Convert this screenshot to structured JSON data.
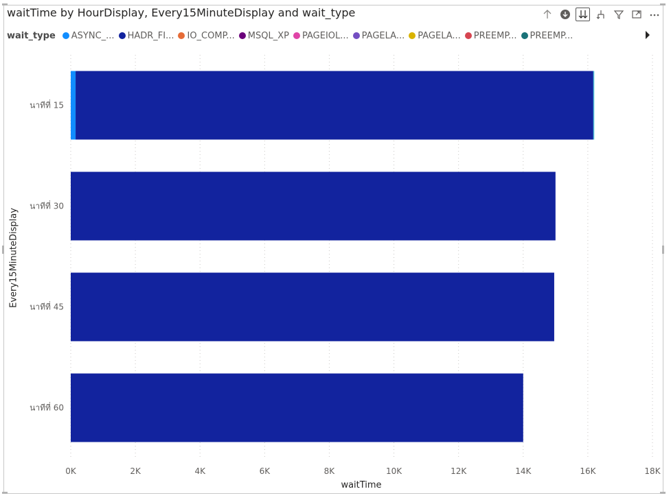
{
  "visual": {
    "title": "waitTime by HourDisplay, Every15MinuteDisplay and wait_type",
    "toolbar": [
      {
        "name": "drill-up-icon",
        "active": false
      },
      {
        "name": "drill-down-on-icon",
        "active": false
      },
      {
        "name": "expand-next-level-icon",
        "active": true
      },
      {
        "name": "expand-hierarchy-icon",
        "active": false
      },
      {
        "name": "filter-icon",
        "active": false
      },
      {
        "name": "focus-mode-icon",
        "active": false
      },
      {
        "name": "more-options-icon",
        "active": false
      }
    ]
  },
  "legend": {
    "title": "wait_type",
    "items": [
      {
        "label": "ASYNC_...",
        "color": "#118DFF"
      },
      {
        "label": "HADR_FI...",
        "color": "#12239E"
      },
      {
        "label": "IO_COMP...",
        "color": "#E66C37"
      },
      {
        "label": "MSQL_XP",
        "color": "#6B007B"
      },
      {
        "label": "PAGEIOL...",
        "color": "#E044A7"
      },
      {
        "label": "PAGELA...",
        "color": "#744EC2"
      },
      {
        "label": "PAGELA...",
        "color": "#D9B300"
      },
      {
        "label": "PREEMP...",
        "color": "#D64550"
      },
      {
        "label": "PREEMP...",
        "color": "#197278"
      }
    ]
  },
  "chart_data": {
    "type": "bar",
    "orientation": "horizontal",
    "stacked": true,
    "xlabel": "waitTime",
    "ylabel": "Every15MinuteDisplay",
    "xlim": [
      0,
      18000
    ],
    "x_ticks": [
      "0K",
      "2K",
      "4K",
      "6K",
      "8K",
      "10K",
      "12K",
      "14K",
      "16K",
      "18K"
    ],
    "categories": [
      "นาทีที่ 15",
      "นาทีที่ 30",
      "นาทีที่ 45",
      "นาทีที่ 60"
    ],
    "series": [
      {
        "name": "ASYNC_...",
        "color": "#118DFF",
        "values": [
          150,
          0,
          0,
          0
        ]
      },
      {
        "name": "HADR_FI...",
        "color": "#12239E",
        "values": [
          16020,
          15000,
          14960,
          14000
        ]
      },
      {
        "name": "PREEMP...",
        "color": "#4FC3D9",
        "values": [
          30,
          0,
          0,
          0
        ]
      }
    ],
    "grid": "vertical-dotted"
  }
}
